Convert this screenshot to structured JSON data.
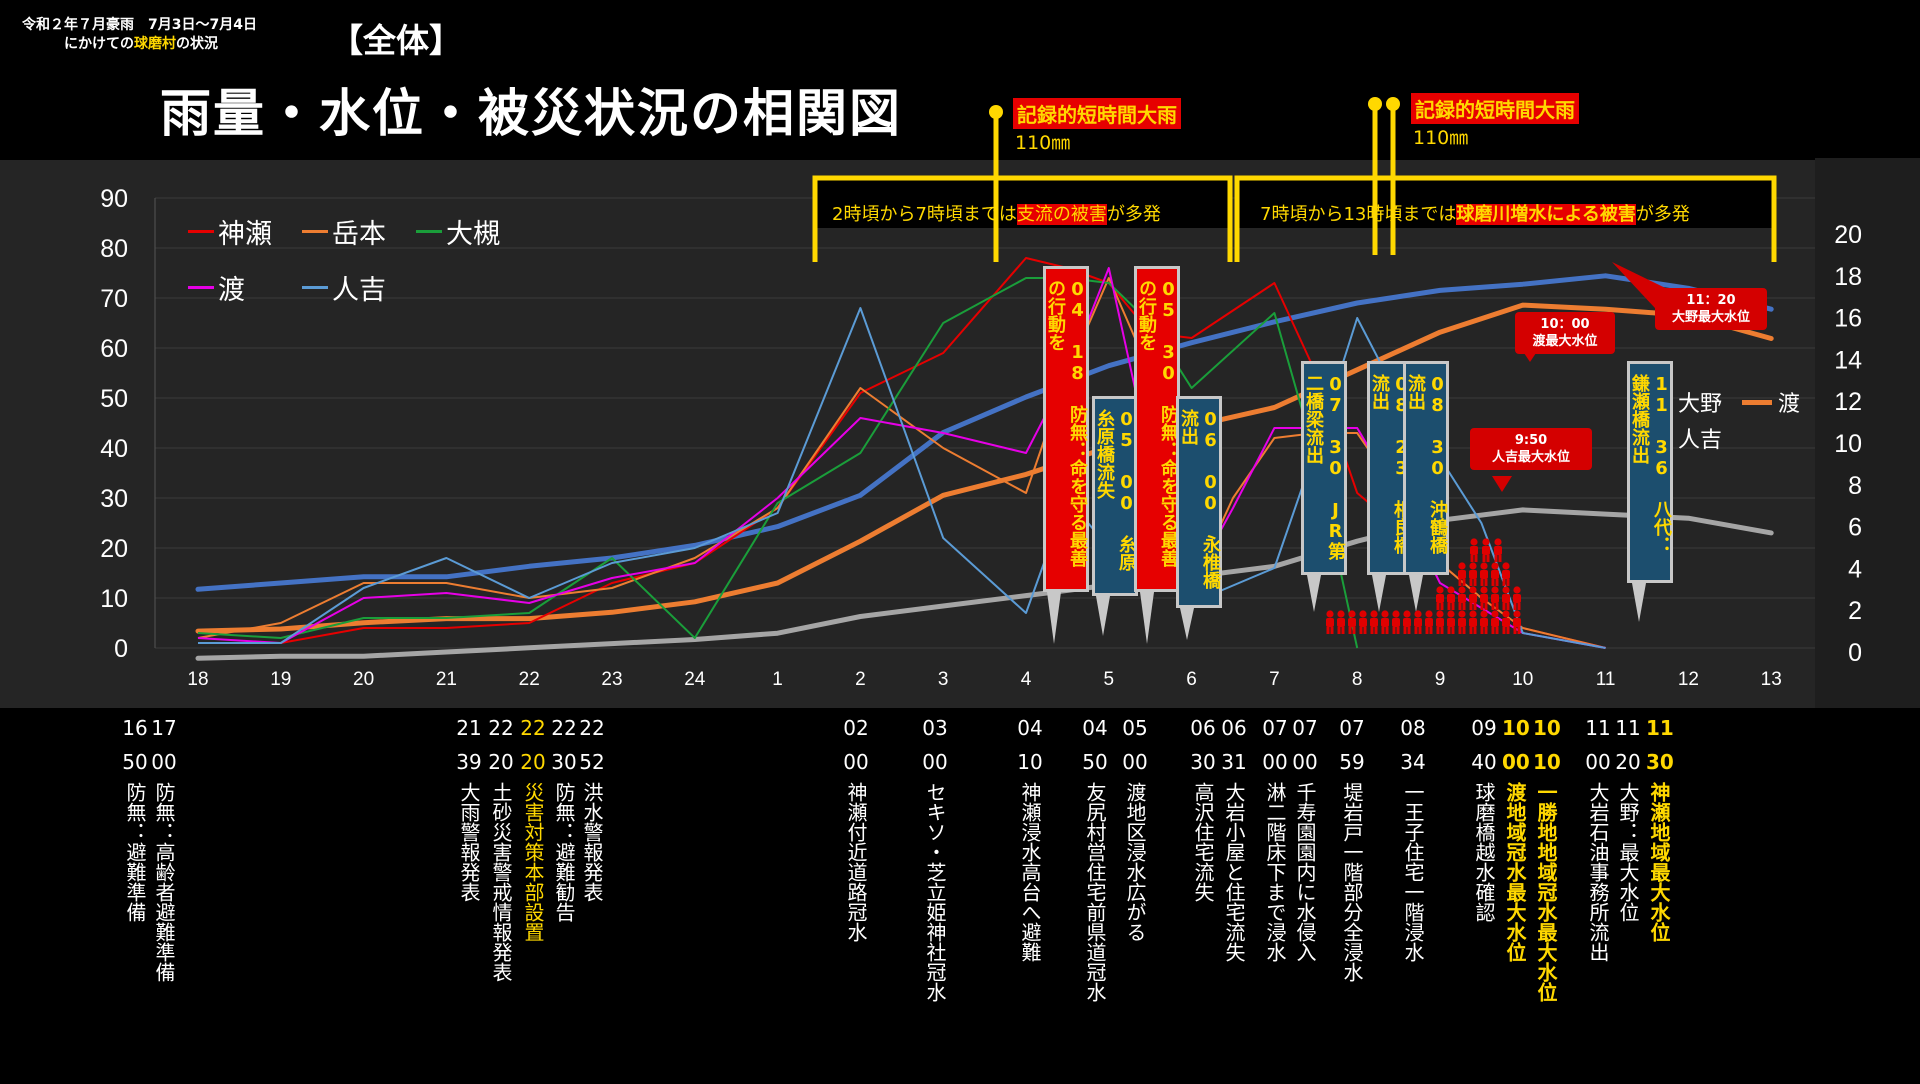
{
  "header": {
    "note_line1": "令和２年７月豪雨　7月3日〜7月4日",
    "note_line2_pre": "にかけての",
    "note_line2_hl": "球磨村",
    "note_line2_post": "の状況",
    "tag": "【全体】",
    "title": "雨量・水位・被災状況の相関図"
  },
  "rain_events": [
    {
      "label": "記録的短時間大雨",
      "amount": "110㎜"
    },
    {
      "label": "記録的短時間大雨",
      "amount": "110㎜"
    }
  ],
  "phases": [
    {
      "pre": "2時頃から7時頃までは",
      "em": "支流の被害",
      "post": "が多発"
    },
    {
      "pre": "7時頃から13時頃までは",
      "em": "球磨川増水による被害",
      "post": "が多発"
    }
  ],
  "colors": {
    "bg": "#000000",
    "plot_bg": "#252525",
    "kamise": "#e60000",
    "takemoto": "#ed7d31",
    "ootsuki": "#1a9e3a",
    "watari": "#e600e6",
    "hitoyoshi_rain": "#5b9bd5",
    "level_oono": "#4472c4",
    "level_watari": "#ed7d31",
    "level_hitoyoshi": "#a5a5a5",
    "accent_yellow": "#ffd800",
    "accent_red": "#e60000"
  },
  "chart_data": {
    "type": "line",
    "x": [
      "18",
      "19",
      "20",
      "21",
      "22",
      "23",
      "24",
      "1",
      "2",
      "3",
      "4",
      "5",
      "6",
      "7",
      "8",
      "9",
      "10",
      "11",
      "12",
      "13"
    ],
    "y_left": {
      "range": [
        0,
        90
      ],
      "ticks": [
        "0",
        "10",
        "20",
        "30",
        "40",
        "50",
        "60",
        "70",
        "80",
        "90"
      ]
    },
    "y_right": {
      "range": [
        0,
        20
      ],
      "ticks": [
        "0",
        "2",
        "4",
        "6",
        "8",
        "10",
        "12",
        "14",
        "16",
        "18",
        "20"
      ]
    },
    "legend_left": [
      "神瀬",
      "岳本",
      "大槻",
      "渡",
      "人吉"
    ],
    "legend_right": [
      "大野",
      "渡",
      "人吉"
    ],
    "series_left": [
      {
        "name": "神瀬",
        "color": "#e60000",
        "points": [
          [
            0,
            1
          ],
          [
            1,
            1
          ],
          [
            2,
            4
          ],
          [
            3,
            4
          ],
          [
            4,
            5
          ],
          [
            5,
            13
          ],
          [
            6,
            17
          ],
          [
            7,
            28
          ],
          [
            8,
            51
          ],
          [
            9,
            59
          ],
          [
            10,
            78
          ],
          [
            10.5,
            76
          ],
          [
            11,
            73
          ],
          [
            11.5,
            63
          ],
          [
            12,
            62
          ],
          [
            13,
            73
          ],
          [
            13.5,
            55
          ],
          [
            14,
            31
          ],
          [
            14.5,
            24
          ],
          [
            15,
            17
          ],
          [
            15.5,
            10
          ],
          [
            16,
            4
          ],
          [
            17,
            0
          ]
        ]
      },
      {
        "name": "岳本",
        "color": "#ed7d31",
        "points": [
          [
            0,
            2
          ],
          [
            1,
            5
          ],
          [
            2,
            13
          ],
          [
            3,
            13
          ],
          [
            4,
            10
          ],
          [
            5,
            12
          ],
          [
            6,
            18
          ],
          [
            7,
            28
          ],
          [
            8,
            52
          ],
          [
            9,
            40
          ],
          [
            10,
            31
          ],
          [
            10.5,
            55
          ],
          [
            11,
            74
          ],
          [
            11.5,
            55
          ],
          [
            12,
            12
          ],
          [
            12.5,
            30
          ],
          [
            13,
            42
          ],
          [
            13.5,
            43
          ],
          [
            14,
            43
          ],
          [
            14.5,
            31
          ],
          [
            15,
            17
          ],
          [
            15.5,
            10
          ],
          [
            16,
            4
          ],
          [
            17,
            0
          ]
        ]
      },
      {
        "name": "大槻",
        "color": "#1a9e3a",
        "points": [
          [
            0,
            3
          ],
          [
            1,
            2
          ],
          [
            2,
            6
          ],
          [
            3,
            6
          ],
          [
            4,
            7
          ],
          [
            5,
            18
          ],
          [
            6,
            2
          ],
          [
            7,
            29
          ],
          [
            8,
            39
          ],
          [
            9,
            65
          ],
          [
            10,
            74
          ],
          [
            10.5,
            74
          ],
          [
            11,
            73
          ],
          [
            11.5,
            65
          ],
          [
            12,
            52
          ],
          [
            13,
            67
          ],
          [
            13.5,
            38
          ],
          [
            14,
            0
          ]
        ]
      },
      {
        "name": "渡",
        "color": "#e600e6",
        "points": [
          [
            0,
            2
          ],
          [
            1,
            1
          ],
          [
            2,
            10
          ],
          [
            3,
            11
          ],
          [
            4,
            9
          ],
          [
            5,
            14
          ],
          [
            6,
            17
          ],
          [
            7,
            30
          ],
          [
            8,
            46
          ],
          [
            9,
            43
          ],
          [
            10,
            39
          ],
          [
            10.5,
            55
          ],
          [
            11,
            76
          ],
          [
            11.5,
            38
          ],
          [
            12,
            13
          ],
          [
            12.5,
            28
          ],
          [
            13,
            44
          ],
          [
            13.5,
            44
          ],
          [
            14,
            44
          ],
          [
            14.5,
            30
          ],
          [
            15,
            13
          ],
          [
            15.5,
            8
          ],
          [
            16,
            3
          ],
          [
            17,
            0
          ]
        ]
      },
      {
        "name": "人吉",
        "color": "#5b9bd5",
        "points": [
          [
            0,
            1
          ],
          [
            1,
            1
          ],
          [
            2,
            12
          ],
          [
            3,
            18
          ],
          [
            4,
            10
          ],
          [
            5,
            17
          ],
          [
            6,
            20
          ],
          [
            7,
            27
          ],
          [
            8,
            68
          ],
          [
            9,
            22
          ],
          [
            10,
            7
          ],
          [
            10.5,
            30
          ],
          [
            11,
            20
          ],
          [
            11.5,
            22
          ],
          [
            12,
            9
          ],
          [
            13,
            16
          ],
          [
            13.5,
            40
          ],
          [
            14,
            66
          ],
          [
            14.5,
            50
          ],
          [
            15,
            38
          ],
          [
            15.5,
            25
          ],
          [
            16,
            3
          ],
          [
            17,
            0
          ]
        ]
      }
    ],
    "series_right": [
      {
        "name": "大野",
        "color": "#4472c4",
        "points": [
          [
            0,
            3
          ],
          [
            1,
            3.3
          ],
          [
            2,
            3.6
          ],
          [
            3,
            3.6
          ],
          [
            4,
            4.1
          ],
          [
            5,
            4.5
          ],
          [
            6,
            5.1
          ],
          [
            7,
            6
          ],
          [
            8,
            7.5
          ],
          [
            9,
            10.5
          ],
          [
            10,
            12.2
          ],
          [
            11,
            13.7
          ],
          [
            12,
            14.8
          ],
          [
            13,
            15.8
          ],
          [
            14,
            16.7
          ],
          [
            15,
            17.3
          ],
          [
            16,
            17.6
          ],
          [
            17,
            18
          ],
          [
            18,
            17.4
          ],
          [
            19,
            16.4
          ]
        ]
      },
      {
        "name": "渡",
        "color": "#ed7d31",
        "points": [
          [
            0,
            1
          ],
          [
            1,
            1.1
          ],
          [
            2,
            1.4
          ],
          [
            3,
            1.6
          ],
          [
            4,
            1.6
          ],
          [
            5,
            1.9
          ],
          [
            6,
            2.4
          ],
          [
            7,
            3.3
          ],
          [
            8,
            5.3
          ],
          [
            9,
            7.5
          ],
          [
            10,
            8.5
          ],
          [
            11,
            9.8
          ],
          [
            12,
            10.8
          ],
          [
            13,
            11.7
          ],
          [
            14,
            13.5
          ],
          [
            15,
            15.3
          ],
          [
            16,
            16.6
          ],
          [
            17,
            16.4
          ],
          [
            18,
            16.1
          ],
          [
            19,
            15
          ]
        ]
      },
      {
        "name": "人吉",
        "color": "#a5a5a5",
        "points": [
          [
            0,
            -0.3
          ],
          [
            1,
            -0.2
          ],
          [
            2,
            -0.2
          ],
          [
            3,
            0
          ],
          [
            4,
            0.2
          ],
          [
            5,
            0.4
          ],
          [
            6,
            0.6
          ],
          [
            7,
            0.9
          ],
          [
            8,
            1.7
          ],
          [
            9,
            2.2
          ],
          [
            10,
            2.7
          ],
          [
            11,
            3.2
          ],
          [
            12,
            3.6
          ],
          [
            13,
            4.1
          ],
          [
            14,
            5.3
          ],
          [
            15,
            6.3
          ],
          [
            16,
            6.8
          ],
          [
            17,
            6.6
          ],
          [
            18,
            6.4
          ],
          [
            19,
            5.7
          ]
        ]
      }
    ]
  },
  "callouts": [
    {
      "text": "04 18 防無：命を守る最善の行動を",
      "style": "red"
    },
    {
      "text": "05 00 糸原糸原橋流失",
      "style": "blue"
    },
    {
      "text": "05 30 防無：命を守る最善の行動を",
      "style": "red"
    },
    {
      "text": "06 00 永椎橋流出",
      "style": "blue"
    },
    {
      "text": "07 30 JR第二橋梁流出",
      "style": "blue"
    },
    {
      "text": "08 23 相良橋流出",
      "style": "blue"
    },
    {
      "text": "08 30 沖鶴橋流出",
      "style": "blue"
    },
    {
      "text": "11 36 八代：鎌瀬橋流出",
      "style": "blue"
    }
  ],
  "peaks": [
    {
      "time": "10：00",
      "label": "渡最大水位"
    },
    {
      "time": "11：20",
      "label": "大野最大水位"
    },
    {
      "time": "9:50",
      "label": "人吉最大水位"
    }
  ],
  "timeline": [
    {
      "hh": "16",
      "mm": "50",
      "text": "防無：避難準備",
      "style": ""
    },
    {
      "hh": "17",
      "mm": "00",
      "text": "防無：高齢者避難準備",
      "style": ""
    },
    {
      "hh": "21",
      "mm": "39",
      "text": "大雨警報発表",
      "style": ""
    },
    {
      "hh": "22",
      "mm": "20",
      "text": "土砂災害警戒情報発表",
      "style": ""
    },
    {
      "hh": "22",
      "mm": "20",
      "text": "災害対策本部設置",
      "style": "hl"
    },
    {
      "hh": "22",
      "mm": "30",
      "text": "防無：避難勧告",
      "style": ""
    },
    {
      "hh": "22",
      "mm": "52",
      "text": "洪水警報発表",
      "style": ""
    },
    {
      "hh": "02",
      "mm": "00",
      "text": "神瀬付近道路冠水",
      "style": ""
    },
    {
      "hh": "03",
      "mm": "00",
      "text": "セキソ・芝立姫神社冠水",
      "style": ""
    },
    {
      "hh": "04",
      "mm": "10",
      "text": "神瀬浸水高台へ避難",
      "style": ""
    },
    {
      "hh": "04",
      "mm": "50",
      "text": "友尻村営住宅前県道冠水",
      "style": ""
    },
    {
      "hh": "05",
      "mm": "00",
      "text": "渡地区浸水広がる",
      "style": ""
    },
    {
      "hh": "06",
      "mm": "30",
      "text": "高沢住宅流失",
      "style": ""
    },
    {
      "hh": "06",
      "mm": "31",
      "text": "大岩小屋と住宅流失",
      "style": ""
    },
    {
      "hh": "07",
      "mm": "00",
      "text": "淋二階床下まで浸水",
      "style": ""
    },
    {
      "hh": "07",
      "mm": "00",
      "text": "千寿園園内に水侵入",
      "style": ""
    },
    {
      "hh": "07",
      "mm": "59",
      "text": "堤岩戸一階部分全浸水",
      "style": ""
    },
    {
      "hh": "08",
      "mm": "34",
      "text": "一王子住宅一階浸水",
      "style": ""
    },
    {
      "hh": "09",
      "mm": "40",
      "text": "球磨橋越水確認",
      "style": ""
    },
    {
      "hh": "10",
      "mm": "00",
      "text": "渡地域冠水最大水位",
      "style": "hlb"
    },
    {
      "hh": "10",
      "mm": "10",
      "text": "一勝地地域冠水最大水位",
      "style": "hlb"
    },
    {
      "hh": "11",
      "mm": "00",
      "text": "大岩石油事務所流出",
      "style": ""
    },
    {
      "hh": "11",
      "mm": "20",
      "text": "大野：最大水位",
      "style": ""
    },
    {
      "hh": "11",
      "mm": "30",
      "text": "神瀬地域最大水位",
      "style": "hlb"
    }
  ]
}
